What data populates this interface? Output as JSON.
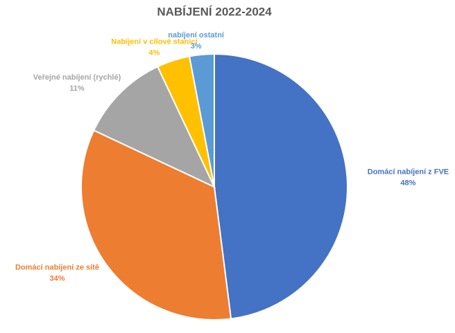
{
  "chart_data": {
    "type": "pie",
    "title": "NABÍJENÍ 2022-2024",
    "categories": [
      "Domácí nabíjení z FVE",
      "Domácí nabíjení ze sítě",
      "Veřejné nabíjení (rychlé)",
      "Nabíjení v cílové stanici",
      "nabíjení ostatní"
    ],
    "values": [
      48,
      34,
      11,
      4,
      3
    ],
    "value_labels": [
      "48%",
      "34%",
      "11%",
      "4%",
      "3%"
    ],
    "colors": [
      "#4472c4",
      "#ed7d31",
      "#a5a5a5",
      "#ffc000",
      "#5b9bd5"
    ]
  }
}
